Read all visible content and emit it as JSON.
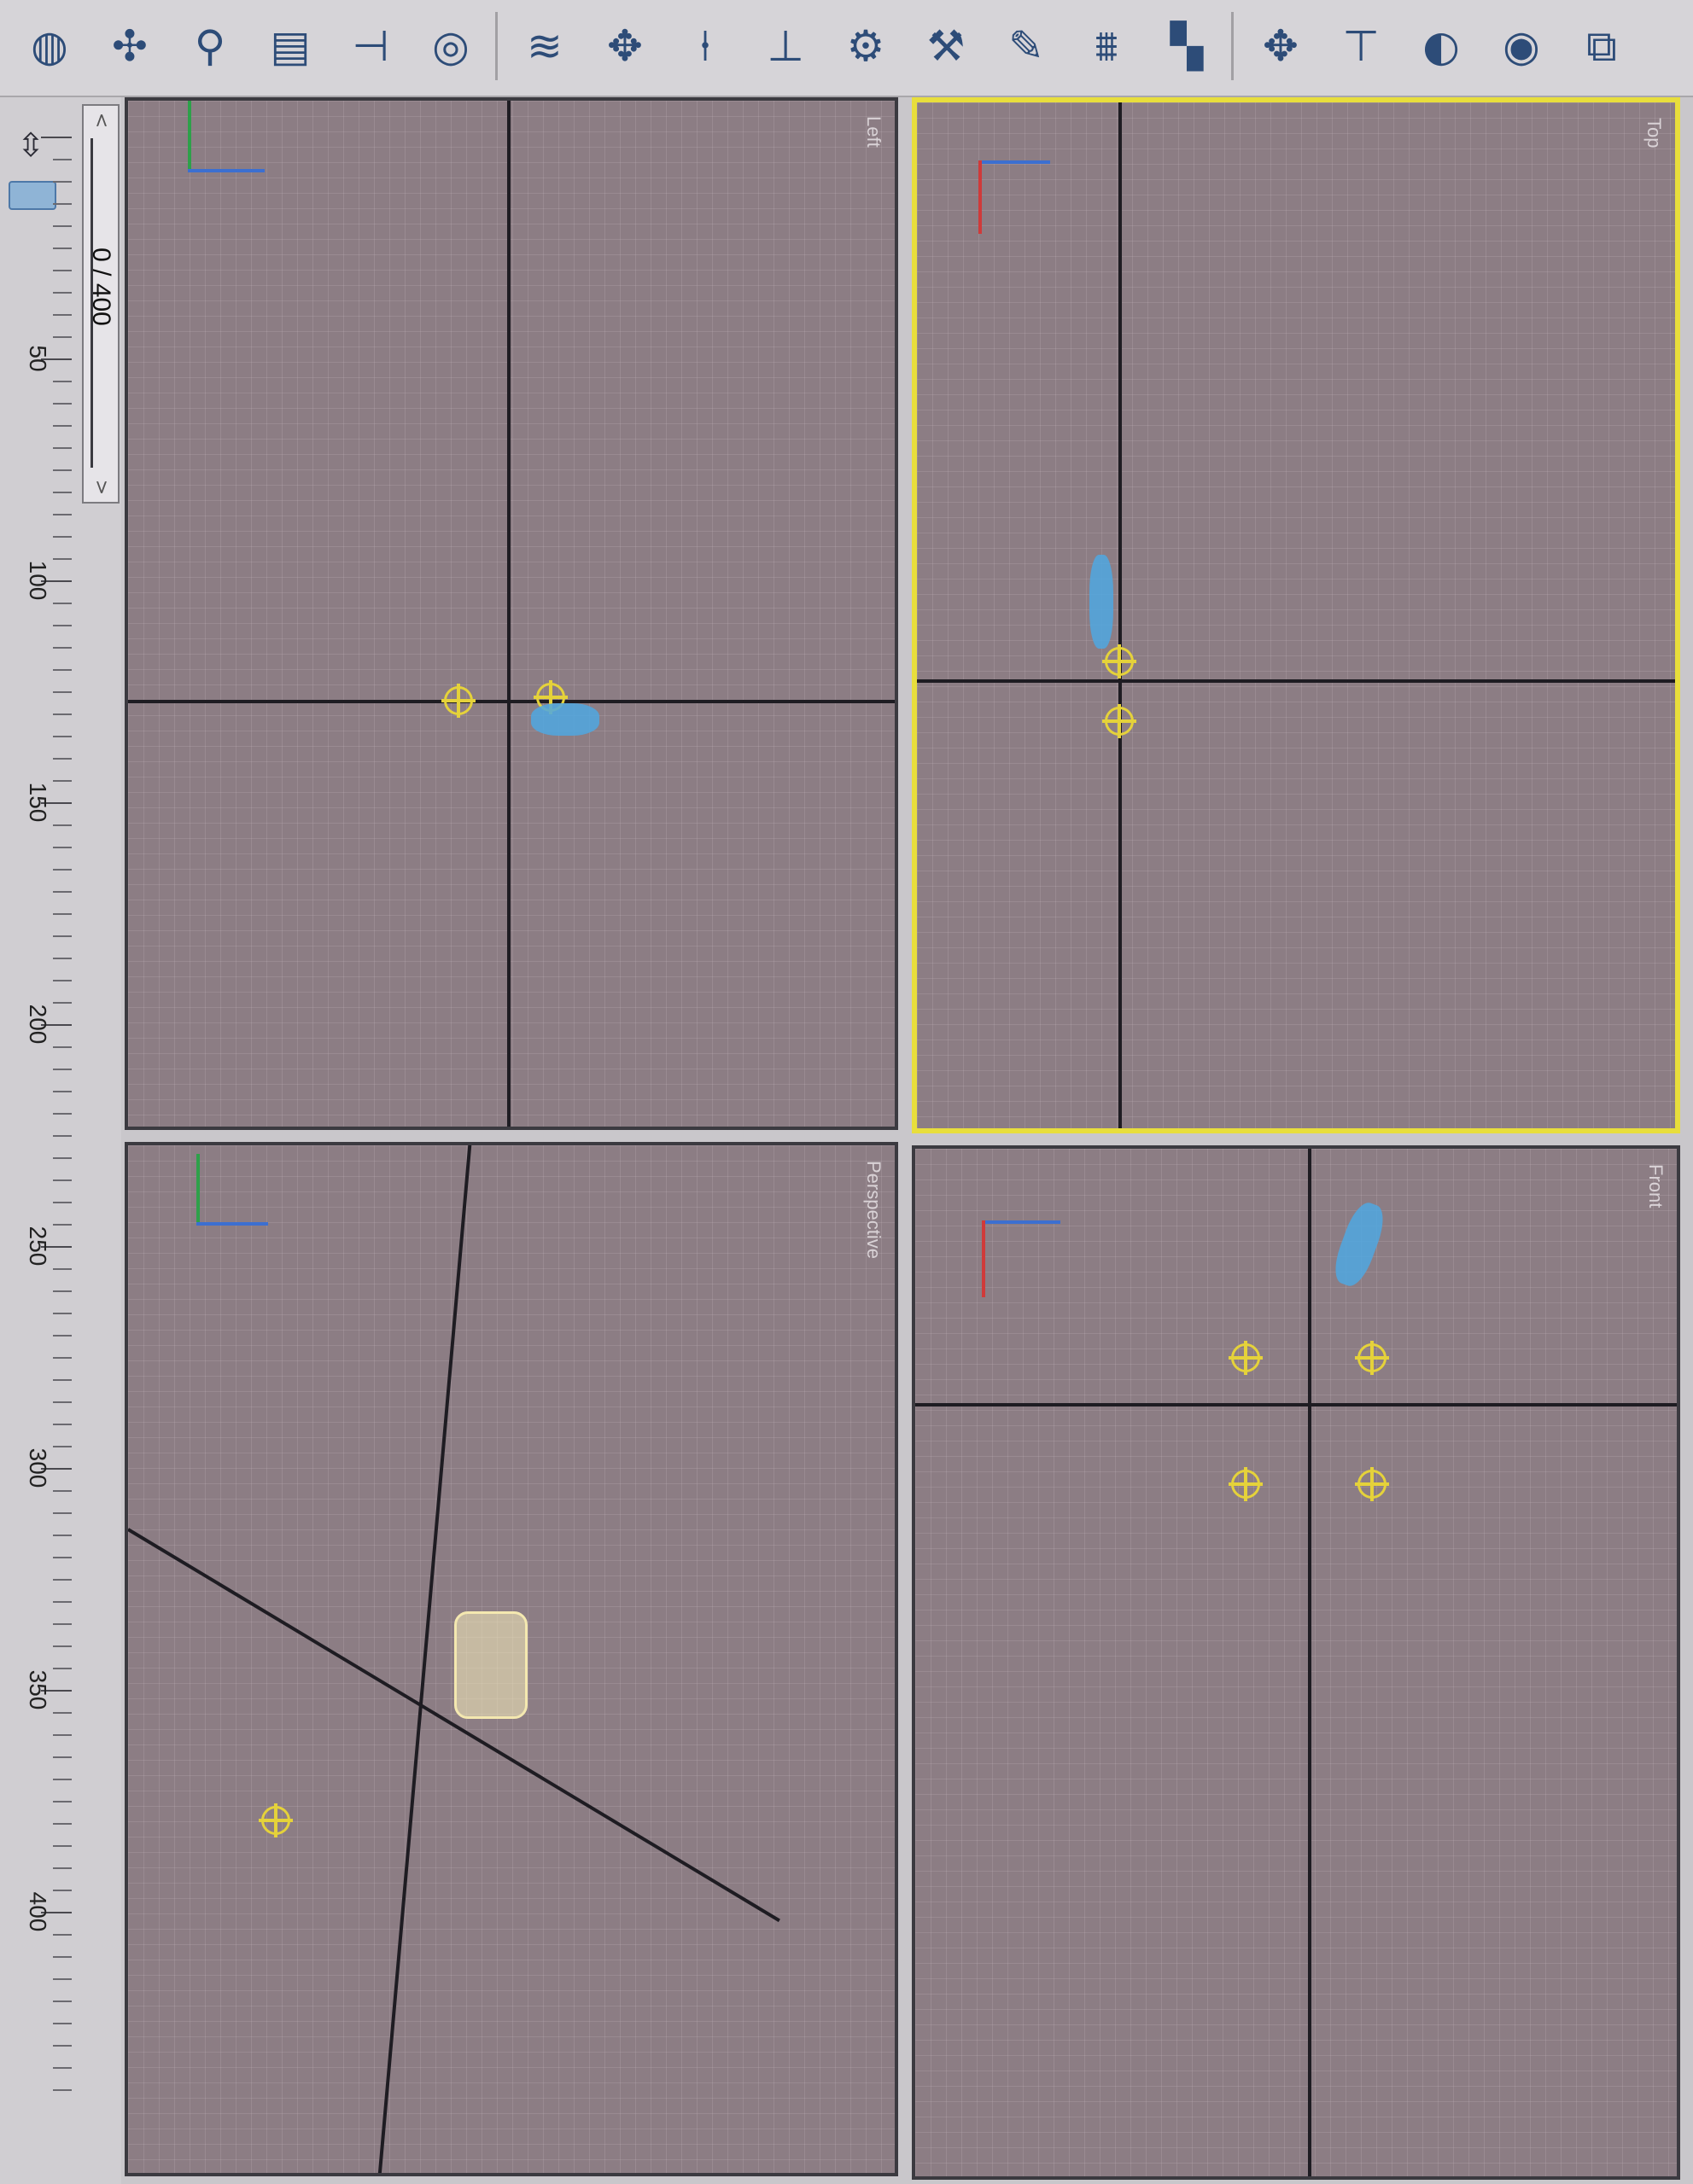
{
  "toolbar": {
    "tools": [
      {
        "name": "sphere-gizmo-icon",
        "glyph": "◍"
      },
      {
        "name": "dummy-icon",
        "glyph": "✣"
      },
      {
        "name": "point-icon",
        "glyph": "⚲"
      },
      {
        "name": "grid-helper-icon",
        "glyph": "▤"
      },
      {
        "name": "tape-icon",
        "glyph": "⊣"
      },
      {
        "name": "compass-icon",
        "glyph": "◎"
      },
      {
        "name": "wind-icon",
        "glyph": "≋"
      },
      {
        "name": "spray-icon",
        "glyph": "✥"
      },
      {
        "name": "bone-icon",
        "glyph": "⍿"
      },
      {
        "name": "ik-chain-icon",
        "glyph": "⊥"
      },
      {
        "name": "gear-icon",
        "glyph": "⚙"
      },
      {
        "name": "wrench-icon",
        "glyph": "⚒"
      },
      {
        "name": "brush-icon",
        "glyph": "✎"
      },
      {
        "name": "spring-icon",
        "glyph": "⩩"
      },
      {
        "name": "checker-icon",
        "glyph": "▚"
      },
      {
        "name": "move-icon",
        "glyph": "✥"
      },
      {
        "name": "align-icon",
        "glyph": "⊤"
      },
      {
        "name": "sphere-render-icon",
        "glyph": "◐"
      },
      {
        "name": "teapot-icon",
        "glyph": "◉"
      },
      {
        "name": "layers-icon",
        "glyph": "⧉"
      }
    ]
  },
  "timeline": {
    "frame_counter": "0 / 400",
    "ruler_labels": [
      "50",
      "100",
      "150",
      "200",
      "250",
      "300",
      "350",
      "400"
    ],
    "scroll_up": "<",
    "scroll_down": ">"
  },
  "viewports": {
    "left": {
      "label": "Left"
    },
    "top": {
      "label": "Top"
    },
    "perspective": {
      "label": "Perspective"
    },
    "front": {
      "label": "Front"
    }
  },
  "colors": {
    "viewport_bg": "#8c7d84",
    "active_border": "#e8de3c",
    "helper": "#e5d23a",
    "figure": "#4fa7e0"
  }
}
